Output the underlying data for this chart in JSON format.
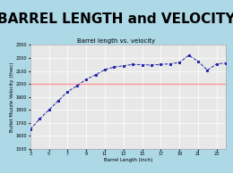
{
  "title": "BARREL LENGTH and VELOCITY",
  "subtitle": "Barrel length vs. velocity",
  "xlabel": "Barrel Length (inch)",
  "ylabel": "Bullet Muzzle Velocity (f/sec)",
  "title_fontsize": 11,
  "subtitle_fontsize": 5,
  "axis_label_fontsize": 4,
  "tick_fontsize": 3.5,
  "background_color": "#add8e6",
  "plot_bg_color": "#e8e8e8",
  "line_color": "#2222aa",
  "hline_color": "#ff9999",
  "hline_y": 2000,
  "xlim": [
    3,
    24
  ],
  "ylim": [
    1500,
    2300
  ],
  "yticks": [
    1500,
    1600,
    1700,
    1800,
    1900,
    2000,
    2100,
    2200,
    2300
  ],
  "xticks": [
    3,
    5,
    7,
    9,
    11,
    13,
    15,
    17,
    19,
    21,
    23
  ],
  "x": [
    3,
    4,
    5,
    6,
    7,
    8,
    9,
    10,
    11,
    12,
    13,
    14,
    15,
    16,
    17,
    18,
    19,
    20,
    21,
    22,
    23,
    24
  ],
  "y": [
    1650,
    1730,
    1800,
    1870,
    1940,
    1985,
    2035,
    2070,
    2110,
    2130,
    2140,
    2150,
    2148,
    2145,
    2150,
    2155,
    2165,
    2220,
    2175,
    2105,
    2155,
    2160
  ]
}
